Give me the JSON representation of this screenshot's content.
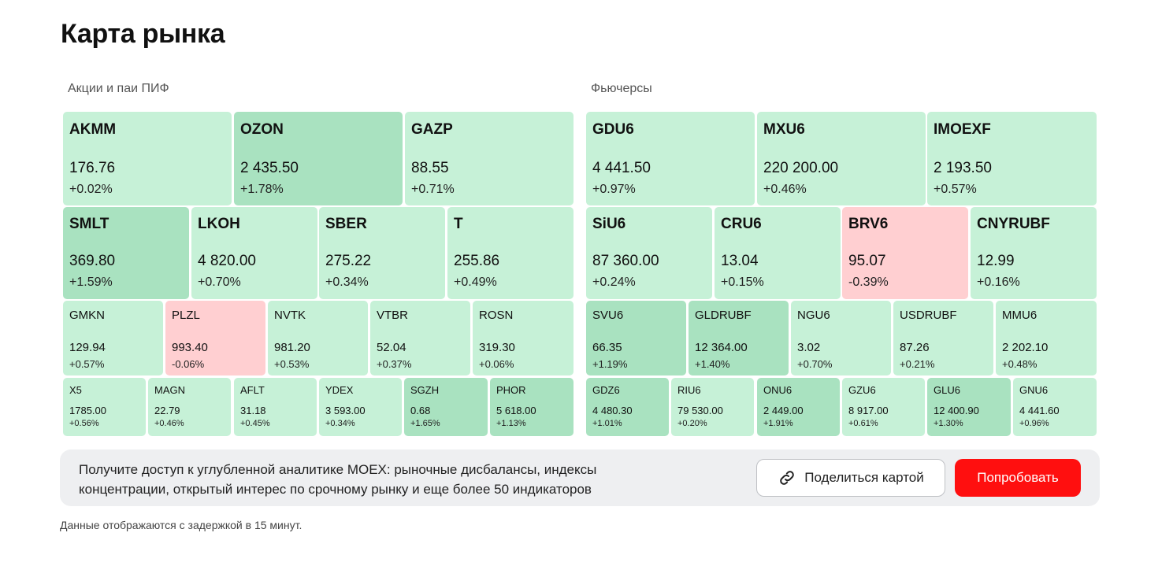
{
  "title": "Карта рынка",
  "sections": {
    "stocks_label": "Акции и паи ПИФ",
    "futures_label": "Фьючерсы"
  },
  "colors": {
    "light_green": "#c6f1d7",
    "mid_green": "#a9e2c0",
    "light_red": "#ffcfd1",
    "accent_red": "#ff0f0f"
  },
  "stocks": [
    {
      "ticker": "AKMM",
      "price": "176.76",
      "change": "+0.02%",
      "tone": "light_green"
    },
    {
      "ticker": "OZON",
      "price": "2 435.50",
      "change": "+1.78%",
      "tone": "mid_green"
    },
    {
      "ticker": "GAZP",
      "price": "88.55",
      "change": "+0.71%",
      "tone": "light_green"
    },
    {
      "ticker": "SMLT",
      "price": "369.80",
      "change": "+1.59%",
      "tone": "mid_green"
    },
    {
      "ticker": "LKOH",
      "price": "4 820.00",
      "change": "+0.70%",
      "tone": "light_green"
    },
    {
      "ticker": "SBER",
      "price": "275.22",
      "change": "+0.34%",
      "tone": "light_green"
    },
    {
      "ticker": "T",
      "price": "255.86",
      "change": "+0.49%",
      "tone": "light_green"
    },
    {
      "ticker": "GMKN",
      "price": "129.94",
      "change": "+0.57%",
      "tone": "light_green"
    },
    {
      "ticker": "PLZL",
      "price": "993.40",
      "change": "-0.06%",
      "tone": "light_red"
    },
    {
      "ticker": "NVTK",
      "price": "981.20",
      "change": "+0.53%",
      "tone": "light_green"
    },
    {
      "ticker": "VTBR",
      "price": "52.04",
      "change": "+0.37%",
      "tone": "light_green"
    },
    {
      "ticker": "ROSN",
      "price": "319.30",
      "change": "+0.06%",
      "tone": "light_green"
    },
    {
      "ticker": "X5",
      "price": "1785.00",
      "change": "+0.56%",
      "tone": "light_green"
    },
    {
      "ticker": "MAGN",
      "price": "22.79",
      "change": "+0.46%",
      "tone": "light_green"
    },
    {
      "ticker": "AFLT",
      "price": "31.18",
      "change": "+0.45%",
      "tone": "light_green"
    },
    {
      "ticker": "YDEX",
      "price": "3 593.00",
      "change": "+0.34%",
      "tone": "light_green"
    },
    {
      "ticker": "SGZH",
      "price": "0.68",
      "change": "+1.65%",
      "tone": "mid_green"
    },
    {
      "ticker": "PHOR",
      "price": "5 618.00",
      "change": "+1.13%",
      "tone": "mid_green"
    }
  ],
  "futures": [
    {
      "ticker": "GDU6",
      "price": "4 441.50",
      "change": "+0.97%",
      "tone": "light_green"
    },
    {
      "ticker": "MXU6",
      "price": "220 200.00",
      "change": "+0.46%",
      "tone": "light_green"
    },
    {
      "ticker": "IMOEXF",
      "price": "2 193.50",
      "change": "+0.57%",
      "tone": "light_green"
    },
    {
      "ticker": "SiU6",
      "price": "87 360.00",
      "change": "+0.24%",
      "tone": "light_green"
    },
    {
      "ticker": "CRU6",
      "price": "13.04",
      "change": "+0.15%",
      "tone": "light_green"
    },
    {
      "ticker": "BRV6",
      "price": "95.07",
      "change": "-0.39%",
      "tone": "light_red"
    },
    {
      "ticker": "CNYRUBF",
      "price": "12.99",
      "change": "+0.16%",
      "tone": "light_green"
    },
    {
      "ticker": "SVU6",
      "price": "66.35",
      "change": "+1.19%",
      "tone": "mid_green"
    },
    {
      "ticker": "GLDRUBF",
      "price": "12 364.00",
      "change": "+1.40%",
      "tone": "mid_green"
    },
    {
      "ticker": "NGU6",
      "price": "3.02",
      "change": "+0.70%",
      "tone": "light_green"
    },
    {
      "ticker": "USDRUBF",
      "price": "87.26",
      "change": "+0.21%",
      "tone": "light_green"
    },
    {
      "ticker": "MMU6",
      "price": "2 202.10",
      "change": "+0.48%",
      "tone": "light_green"
    },
    {
      "ticker": "GDZ6",
      "price": "4 480.30",
      "change": "+1.01%",
      "tone": "mid_green"
    },
    {
      "ticker": "RIU6",
      "price": "79 530.00",
      "change": "+0.20%",
      "tone": "light_green"
    },
    {
      "ticker": "ONU6",
      "price": "2 449.00",
      "change": "+1.91%",
      "tone": "mid_green"
    },
    {
      "ticker": "GZU6",
      "price": "8 917.00",
      "change": "+0.61%",
      "tone": "light_green"
    },
    {
      "ticker": "GLU6",
      "price": "12 400.90",
      "change": "+1.30%",
      "tone": "mid_green"
    },
    {
      "ticker": "GNU6",
      "price": "4 441.60",
      "change": "+0.96%",
      "tone": "light_green"
    }
  ],
  "promo": {
    "text": "Получите доступ к углубленной аналитике MOEX: рыночные дисбалансы, индексы концентрации, открытый интерес по срочному рынку и еще более 50 индикаторов",
    "share_label": "Поделиться картой",
    "share_icon": "link-icon",
    "try_label": "Попробовать"
  },
  "footnote": "Данные отображаются с задержкой в 15 минут."
}
